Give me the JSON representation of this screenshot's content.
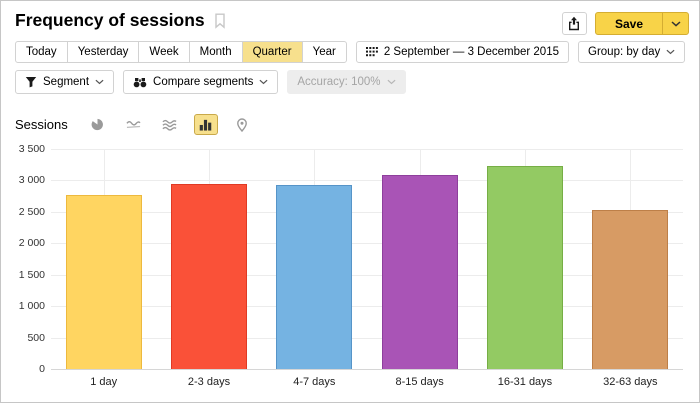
{
  "header": {
    "title": "Frequency of sessions",
    "save_label": "Save"
  },
  "toolbar": {
    "period_tabs": [
      "Today",
      "Yesterday",
      "Week",
      "Month",
      "Quarter",
      "Year"
    ],
    "active_tab": "Quarter",
    "date_range": "2 September — 3 December 2015",
    "group_label": "Group: by day"
  },
  "filters": {
    "segment_label": "Segment",
    "compare_label": "Compare segments",
    "accuracy_label": "Accuracy: 100%",
    "accuracy_enabled": false
  },
  "chart_header": {
    "metric_label": "Sessions",
    "icons": [
      "pie-chart-icon",
      "line-chart-icon",
      "stacked-area-icon",
      "bar-chart-icon",
      "map-pin-icon"
    ],
    "selected_icon": "bar-chart-icon"
  },
  "colors": {
    "accent": "#f8d348",
    "accent_border": "#d4ad32",
    "accent_soft": "#f7e08d"
  },
  "chart_data": {
    "type": "bar",
    "title": "Sessions",
    "categories": [
      "1 day",
      "2-3 days",
      "4-7 days",
      "8-15 days",
      "16-31 days",
      "32-63 days"
    ],
    "values": [
      2770,
      2950,
      2930,
      3090,
      3230,
      2530
    ],
    "bar_colors": [
      "#ffd561",
      "#fa5138",
      "#75b3e2",
      "#a954b6",
      "#93ca63",
      "#d79b64"
    ],
    "bar_border_colors": [
      "#edb93e",
      "#e03a24",
      "#5694c8",
      "#8e3f9c",
      "#76ae45",
      "#bd7f48"
    ],
    "xlabel": "",
    "ylabel": "Sessions",
    "ylim": [
      0,
      3500
    ],
    "ytick_step": 500,
    "ytick_labels": [
      "0",
      "500",
      "1 000",
      "1 500",
      "2 000",
      "2 500",
      "3 000",
      "3 500"
    ],
    "grid": true,
    "legend": false
  }
}
